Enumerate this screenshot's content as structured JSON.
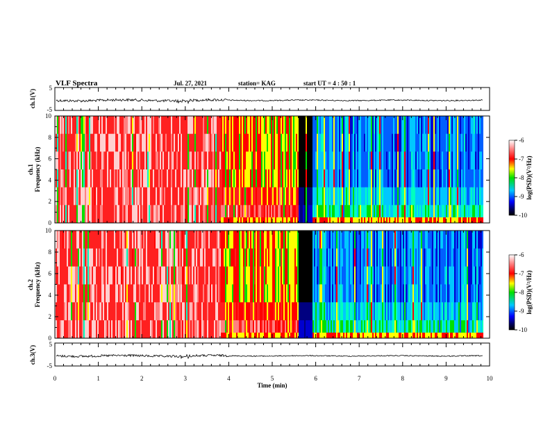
{
  "header": {
    "title": "VLF Spectra",
    "date": "Jul. 27, 2021",
    "station": "station= KAG",
    "start": "start  UT =  4 : 50 : 1"
  },
  "chart_data": [
    {
      "type": "line",
      "name": "ch1-waveform",
      "ylabel": "ch.1(V)",
      "ylim": [
        -5,
        5
      ],
      "yticks": [
        "5",
        "-5"
      ],
      "xlim": [
        0,
        10
      ]
    },
    {
      "type": "heatmap",
      "name": "ch1-spectrogram",
      "ylabel_line1": "ch.1",
      "ylabel_line2": "Frequency (kHz)",
      "ylim": [
        0,
        10
      ],
      "yticks": [
        "0",
        "2",
        "4",
        "6",
        "8",
        "10"
      ],
      "xlim": [
        0,
        10
      ],
      "colorbar": {
        "label": "log(PSD)(V²/Hz)",
        "ticks": [
          "-6",
          "-7",
          "-8",
          "-9",
          "-10"
        ],
        "range": [
          -10,
          -6
        ]
      },
      "approx_quiet_period_min": [
        5.6,
        5.9
      ]
    },
    {
      "type": "heatmap",
      "name": "ch2-spectrogram",
      "ylabel_line1": "ch.2",
      "ylabel_line2": "Frequency (kHz)",
      "ylim": [
        0,
        10
      ],
      "yticks": [
        "0",
        "2",
        "4",
        "6",
        "8",
        "10"
      ],
      "xlim": [
        0,
        10
      ],
      "colorbar": {
        "label": "log(PSD)(V²/Hz)",
        "ticks": [
          "-6",
          "-7",
          "-8",
          "-9",
          "-10"
        ],
        "range": [
          -10,
          -6
        ]
      },
      "approx_quiet_period_min": [
        5.6,
        5.9
      ]
    },
    {
      "type": "line",
      "name": "ch3-waveform",
      "ylabel": "ch.3(V)",
      "ylim": [
        -5,
        5
      ],
      "yticks": [
        "5",
        "-5"
      ],
      "xlim": [
        0,
        10
      ]
    }
  ],
  "xaxis": {
    "label": "Time  (min)",
    "ticks": [
      "0",
      "1",
      "2",
      "3",
      "4",
      "5",
      "6",
      "7",
      "8",
      "9",
      "10"
    ],
    "range": [
      0,
      10
    ],
    "data_end_min": 9.85
  }
}
